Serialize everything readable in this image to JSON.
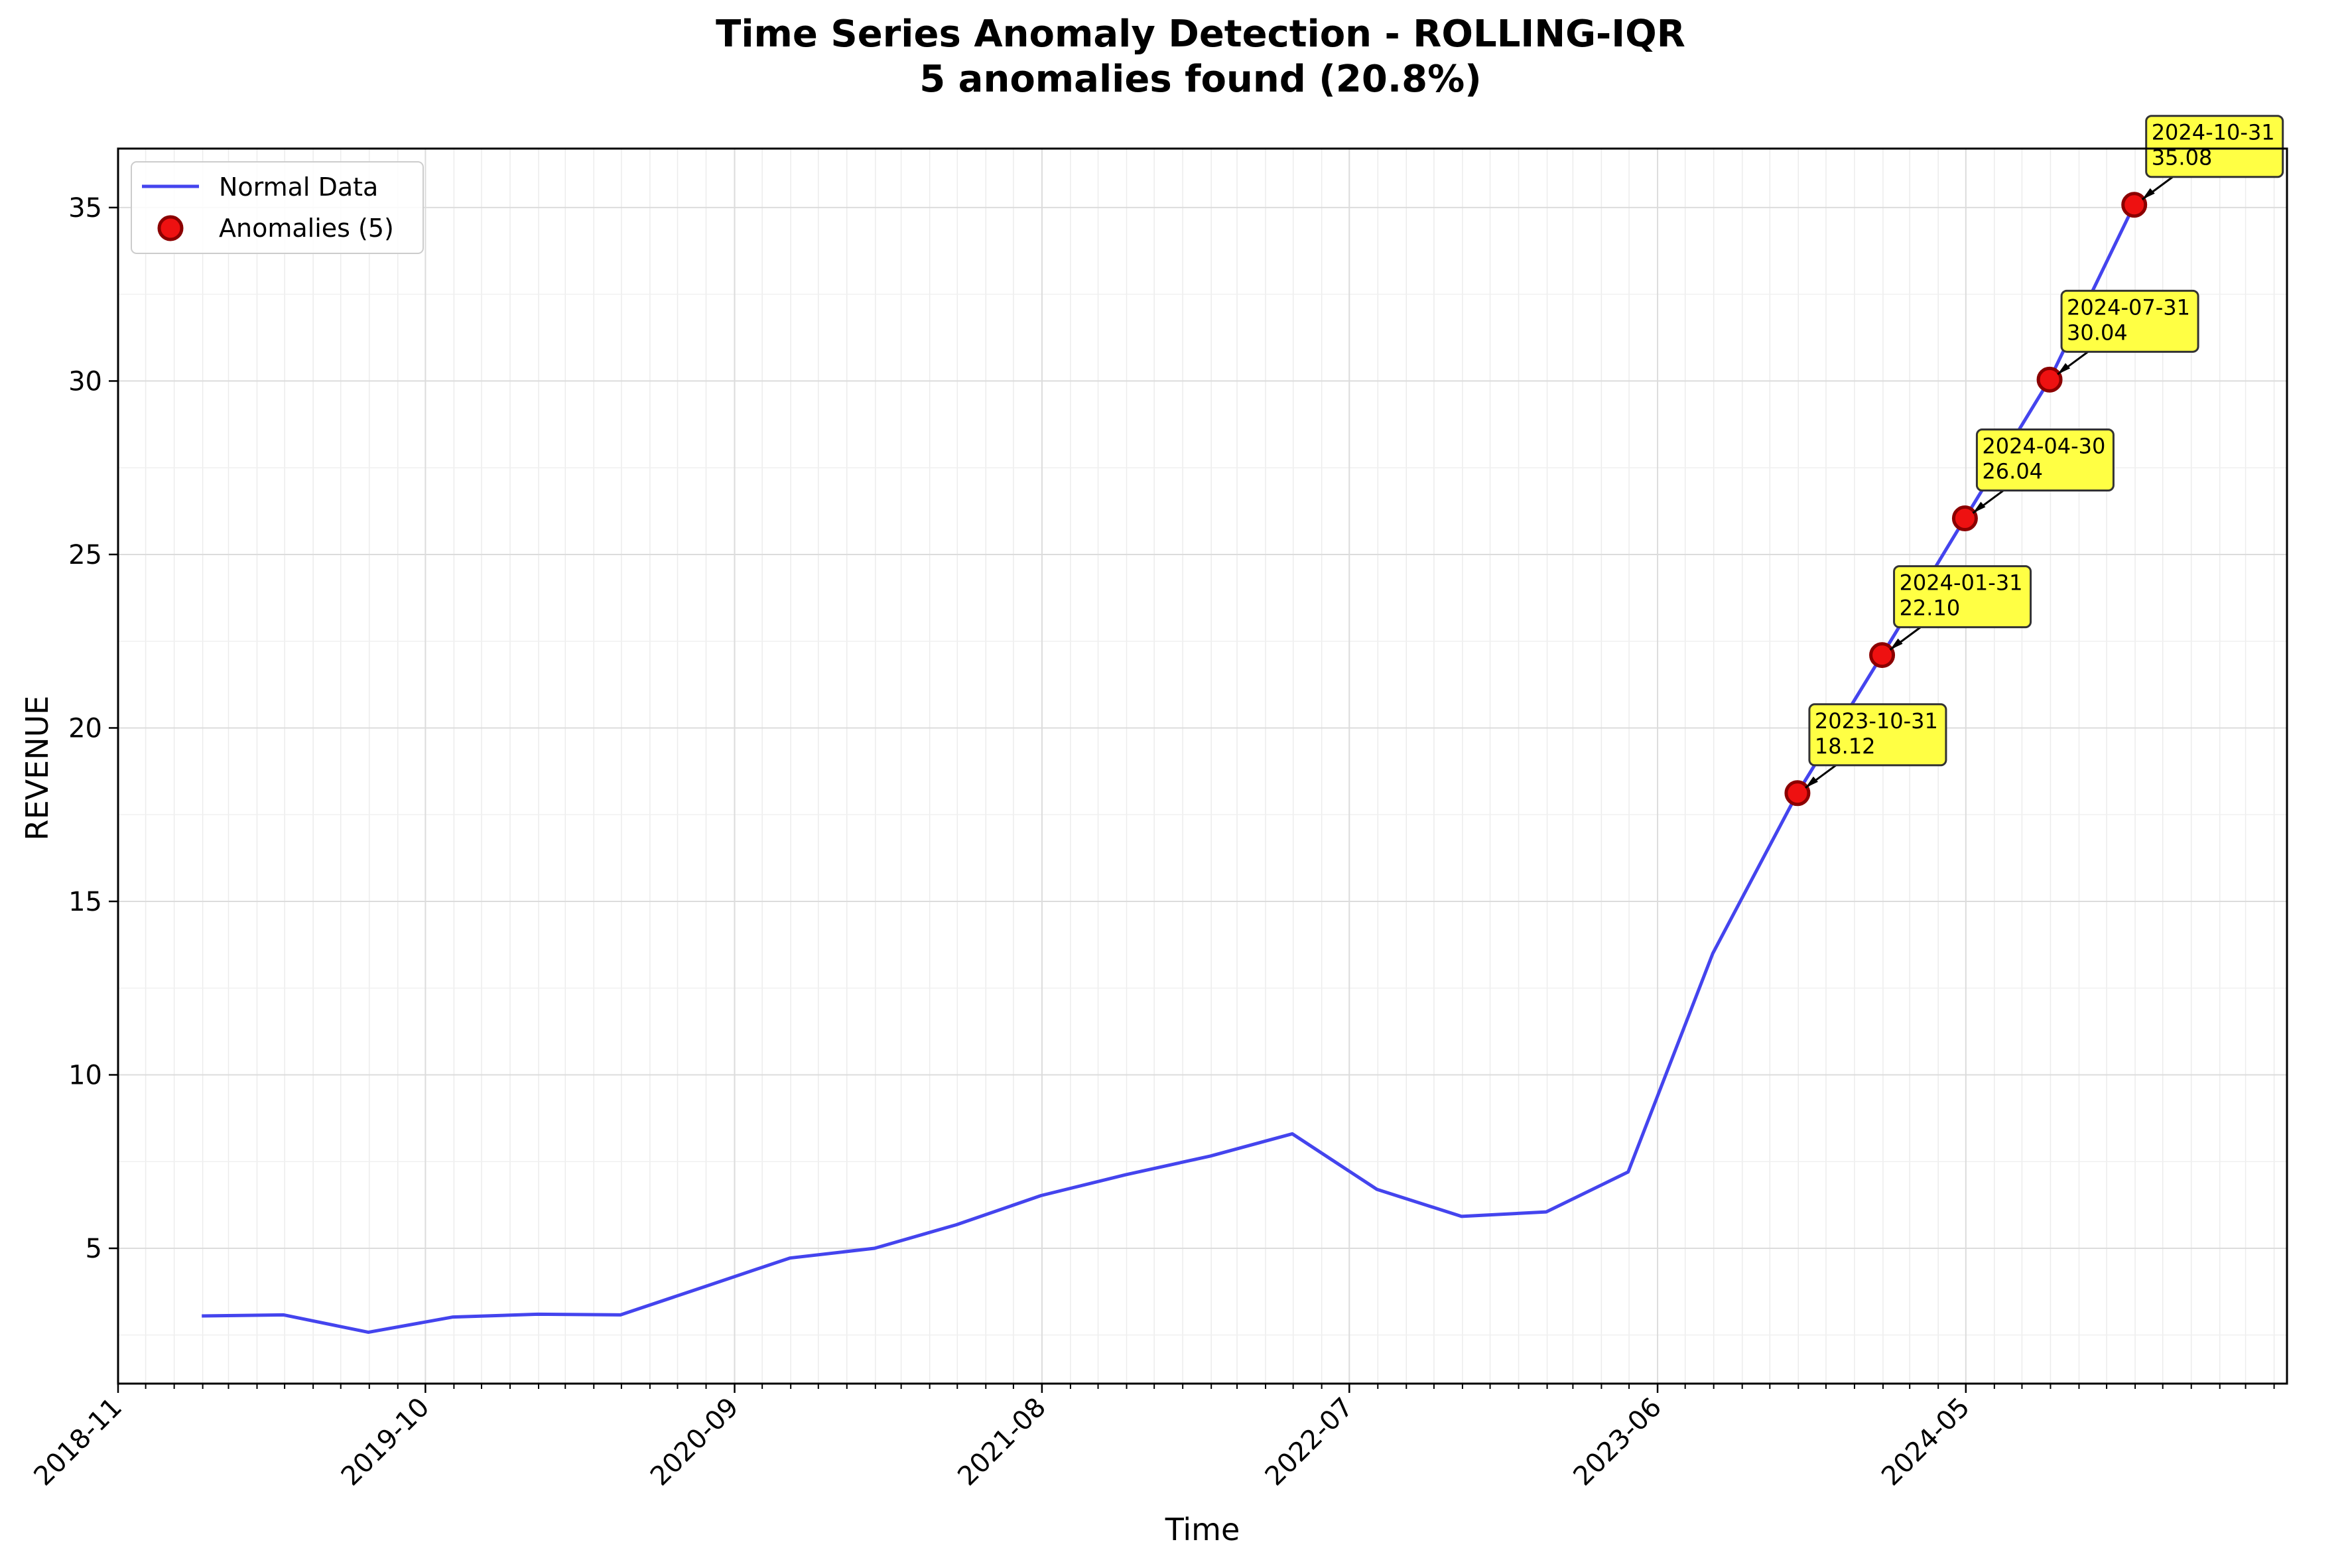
{
  "chart_data": {
    "type": "line",
    "title": "Time Series Anomaly Detection - ROLLING-IQR",
    "subtitle": "5 anomalies found (20.8%)",
    "xlabel": "Time",
    "ylabel": "REVENUE",
    "x_axis_type": "date",
    "xlim": [
      "2018-11-01",
      "2025-04-15"
    ],
    "ylim": [
      1.1,
      36.7
    ],
    "grid": true,
    "minor_grid": true,
    "legend_position": "top-left",
    "x_ticks": [
      "2018-11",
      "2019-10",
      "2020-09",
      "2021-08",
      "2022-07",
      "2023-06",
      "2024-05"
    ],
    "y_ticks": [
      5,
      10,
      15,
      20,
      25,
      30,
      35
    ],
    "series": [
      {
        "name": "Normal Data",
        "type": "line",
        "color": "#4444ee",
        "x": [
          "2019-01-31",
          "2019-04-30",
          "2019-07-31",
          "2019-10-31",
          "2020-01-31",
          "2020-04-30",
          "2020-07-31",
          "2020-10-31",
          "2021-01-31",
          "2021-04-30",
          "2021-07-31",
          "2021-10-31",
          "2022-01-31",
          "2022-04-30",
          "2022-07-31",
          "2022-10-31",
          "2023-01-31",
          "2023-04-30",
          "2023-07-31",
          "2023-10-31",
          "2024-01-31",
          "2024-04-30",
          "2024-07-31",
          "2024-10-31"
        ],
        "y": [
          3.05,
          3.08,
          2.58,
          3.02,
          3.1,
          3.08,
          3.9,
          4.72,
          5.0,
          5.68,
          6.52,
          7.12,
          7.66,
          8.3,
          6.7,
          5.92,
          6.05,
          7.2,
          13.5,
          18.12,
          22.1,
          26.04,
          30.04,
          35.08
        ]
      },
      {
        "name": "Anomalies (5)",
        "type": "scatter",
        "color": "#ee1111",
        "edge_color": "#8b0000",
        "x": [
          "2023-10-31",
          "2024-01-31",
          "2024-04-30",
          "2024-07-31",
          "2024-10-31"
        ],
        "y": [
          18.12,
          22.1,
          26.04,
          30.04,
          35.08
        ]
      }
    ],
    "annotations": [
      {
        "date": "2023-10-31",
        "value": "18.12",
        "y": 18.12
      },
      {
        "date": "2024-01-31",
        "value": "22.10",
        "y": 22.1
      },
      {
        "date": "2024-04-30",
        "value": "26.04",
        "y": 26.04
      },
      {
        "date": "2024-07-31",
        "value": "30.04",
        "y": 30.04
      },
      {
        "date": "2024-10-31",
        "value": "35.08",
        "y": 35.08
      }
    ],
    "annotation_style": {
      "fill": "#ffff44",
      "edge": "#333333"
    }
  }
}
